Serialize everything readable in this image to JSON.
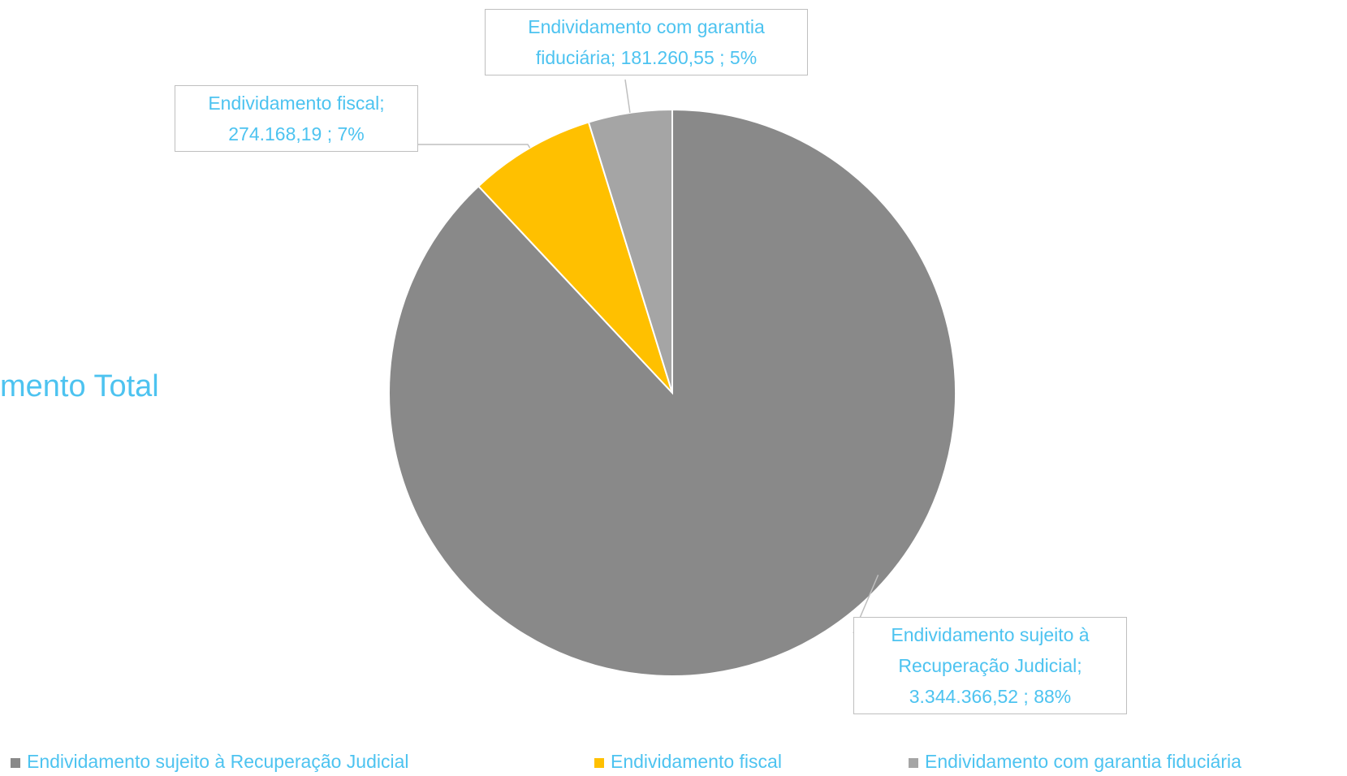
{
  "chart_data": {
    "type": "pie",
    "title": "mento Total",
    "categories": [
      "Endividamento sujeito à Recuperação Judicial",
      "Endividamento fiscal",
      "Endividamento com garantia fiduciária"
    ],
    "values": [
      3344366.52,
      274168.19,
      181260.55
    ],
    "data_labels": [
      "Endividamento sujeito à Recuperação Judicial; 3.344.366,52 ; 88%",
      "Endividamento fiscal; 274.168,19 ; 7%",
      "Endividamento com garantia fiduciária;  181.260,55 ; 5%"
    ],
    "colors": [
      "#898989",
      "#FFC000",
      "#A5A5A5"
    ],
    "legend": "bottom"
  }
}
